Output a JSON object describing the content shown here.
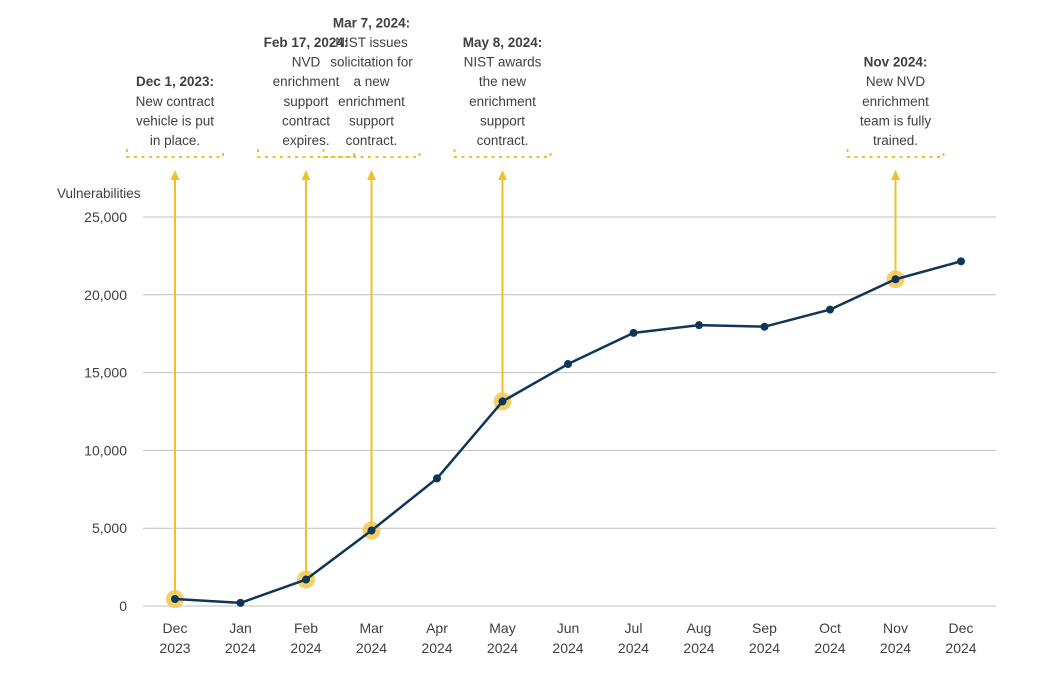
{
  "chart_data": {
    "type": "line",
    "title": "",
    "xlabel": "",
    "ylabel": "Vulnerabilities",
    "ylim": [
      0,
      25000
    ],
    "yticks": [
      "0",
      "5,000",
      "10,000",
      "15,000",
      "20,000",
      "25,000"
    ],
    "grid": true,
    "x": [
      [
        "Dec",
        "2023"
      ],
      [
        "Jan",
        "2024"
      ],
      [
        "Feb",
        "2024"
      ],
      [
        "Mar",
        "2024"
      ],
      [
        "Apr",
        "2024"
      ],
      [
        "May",
        "2024"
      ],
      [
        "Jun",
        "2024"
      ],
      [
        "Jul",
        "2024"
      ],
      [
        "Aug",
        "2024"
      ],
      [
        "Sep",
        "2024"
      ],
      [
        "Oct",
        "2024"
      ],
      [
        "Nov",
        "2024"
      ],
      [
        "Dec",
        "2024"
      ]
    ],
    "series": [
      {
        "values": [
          450,
          200,
          1700,
          4850,
          8200,
          13150,
          15550,
          17550,
          18050,
          17950,
          19050,
          21000,
          22150
        ]
      }
    ],
    "annotations": [
      {
        "index": 0,
        "title": "Dec 1, 2023:",
        "lines": [
          "New contract",
          "vehicle is put",
          "in place."
        ]
      },
      {
        "index": 2,
        "title": "Feb 17, 2024:",
        "lines": [
          "NVD",
          "enrichment",
          "support",
          "contract",
          "expires."
        ]
      },
      {
        "index": 3,
        "title": "Mar 7, 2024:",
        "lines": [
          "NIST issues",
          "solicitation for",
          "a new",
          "enrichment",
          "support",
          "contract."
        ]
      },
      {
        "index": 5,
        "title": "May 8, 2024:",
        "lines": [
          "NIST awards",
          "the new",
          "enrichment",
          "support",
          "contract."
        ]
      },
      {
        "index": 11,
        "title": "Nov 2024:",
        "lines": [
          "New NVD",
          "enrichment",
          "team is fully",
          "trained."
        ]
      }
    ],
    "colors": {
      "line": "#0f3658",
      "highlight": "#f2c94c",
      "annotation": "#f0c02a",
      "grid": "#bfbfbf"
    }
  }
}
